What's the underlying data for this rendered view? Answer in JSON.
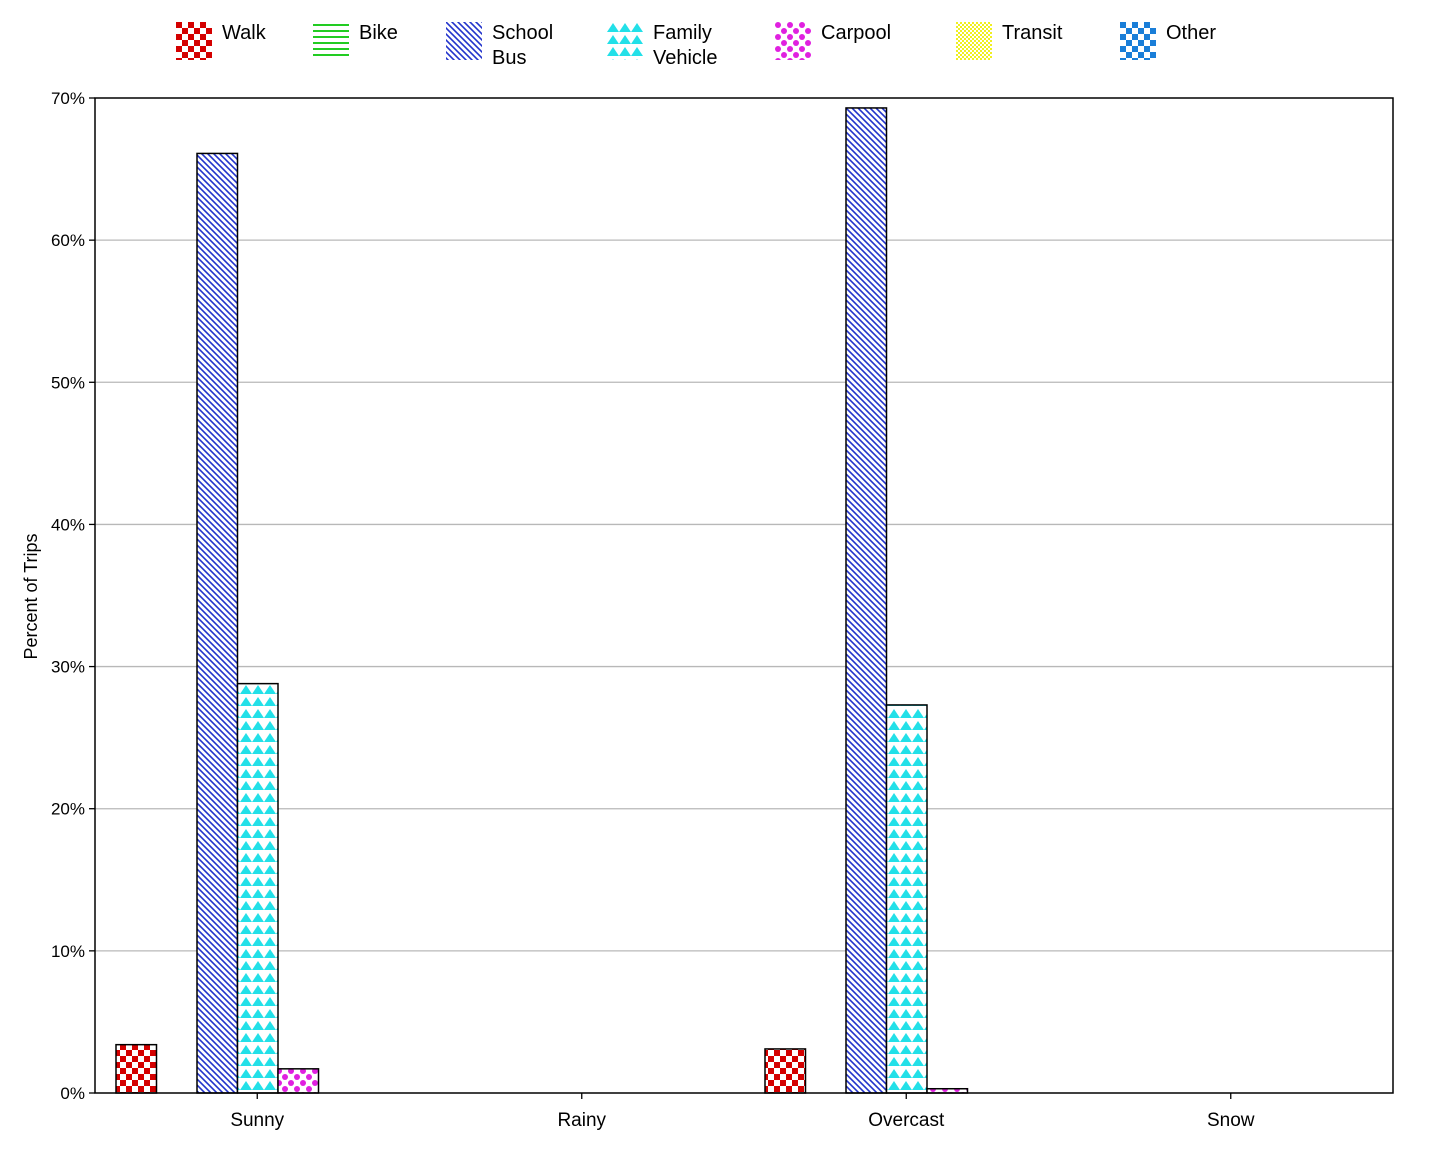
{
  "chart_data": {
    "type": "bar",
    "categories": [
      "Sunny",
      "Rainy",
      "Overcast",
      "Snow"
    ],
    "series": [
      {
        "name": "Walk",
        "values": [
          3.4,
          0,
          3.1,
          0
        ],
        "color": "#d40000",
        "pattern": "checker"
      },
      {
        "name": "Bike",
        "values": [
          0,
          0,
          0,
          0
        ],
        "color": "#22cc22",
        "pattern": "hlines"
      },
      {
        "name": "School Bus",
        "values": [
          66.1,
          0,
          69.3,
          0
        ],
        "color": "#2233cc",
        "pattern": "diagonal"
      },
      {
        "name": "Family Vehicle",
        "values": [
          28.8,
          0,
          27.3,
          0
        ],
        "color": "#22e0e8",
        "pattern": "triangles"
      },
      {
        "name": "Carpool",
        "values": [
          1.7,
          0,
          0.3,
          0
        ],
        "color": "#e020e0",
        "pattern": "dots"
      },
      {
        "name": "Transit",
        "values": [
          0,
          0,
          0,
          0
        ],
        "color": "#f0f020",
        "pattern": "fine-checker"
      },
      {
        "name": "Other",
        "values": [
          0,
          0,
          0,
          0
        ],
        "color": "#1a7ed8",
        "pattern": "checker"
      }
    ],
    "ylabel": "Percent of Trips",
    "xlabel": "",
    "ylim": [
      0,
      70
    ],
    "yticks": [
      0,
      10,
      20,
      30,
      40,
      50,
      60,
      70
    ],
    "ytick_labels": [
      "0%",
      "10%",
      "20%",
      "30%",
      "40%",
      "50%",
      "60%",
      "70%"
    ],
    "grid": true,
    "legend_position": "top"
  },
  "legend": {
    "items": [
      {
        "label": "Walk"
      },
      {
        "label": "Bike"
      },
      {
        "label": "School\nBus"
      },
      {
        "label": "Family\nVehicle"
      },
      {
        "label": "Carpool"
      },
      {
        "label": "Transit"
      },
      {
        "label": "Other"
      }
    ]
  }
}
